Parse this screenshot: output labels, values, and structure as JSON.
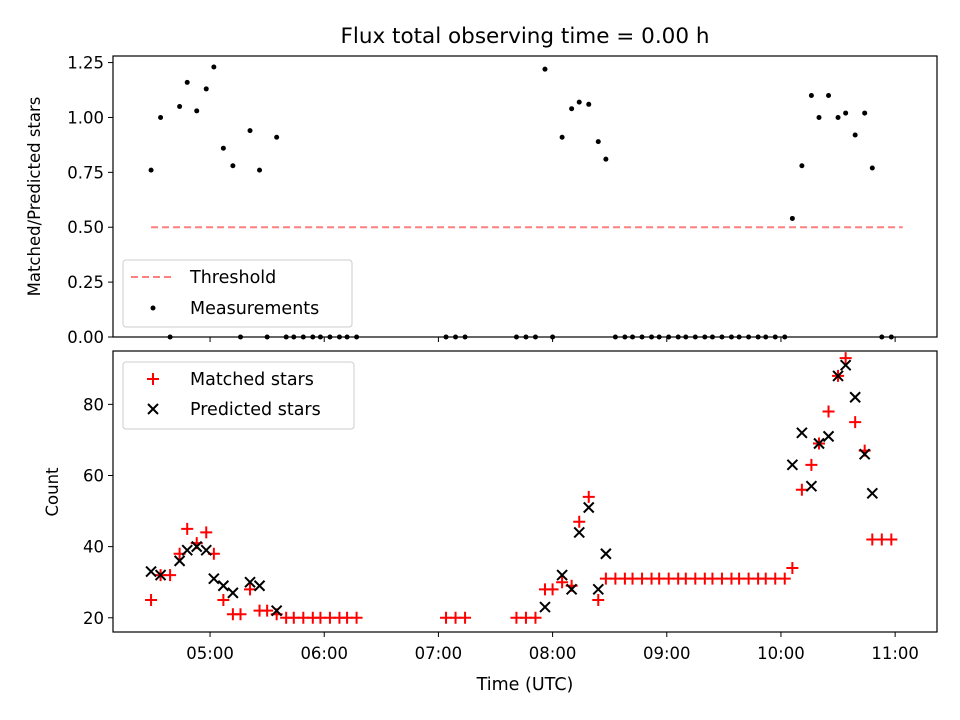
{
  "chart_data": [
    {
      "type": "scatter",
      "title": "Flux total observing time = 0.00 h",
      "xlabel": "",
      "ylabel": "Matched/Predicted stars",
      "xlim": [
        "04:09",
        "11:22"
      ],
      "ylim": [
        0,
        1.28
      ],
      "yticks": [
        "0.00",
        "0.25",
        "0.50",
        "0.75",
        "1.00",
        "1.25"
      ],
      "grid": false,
      "legend": {
        "placement": "lower-left",
        "entries": [
          "Threshold",
          "Measurements"
        ]
      },
      "threshold": {
        "name": "Threshold",
        "y": 0.5,
        "x_range": [
          "04:29",
          "11:04"
        ],
        "color": "#ff7f7f",
        "style": "dashed"
      },
      "series": [
        {
          "name": "Measurements",
          "color": "#000000",
          "marker": "dot",
          "points": [
            [
              "04:29",
              0.76
            ],
            [
              "04:34",
              1.0
            ],
            [
              "04:39",
              0.0
            ],
            [
              "04:44",
              1.05
            ],
            [
              "04:48",
              1.16
            ],
            [
              "04:53",
              1.03
            ],
            [
              "04:58",
              1.13
            ],
            [
              "05:02",
              1.23
            ],
            [
              "05:07",
              0.86
            ],
            [
              "05:12",
              0.78
            ],
            [
              "05:16",
              0.0
            ],
            [
              "05:21",
              0.94
            ],
            [
              "05:26",
              0.76
            ],
            [
              "05:30",
              0.0
            ],
            [
              "05:35",
              0.91
            ],
            [
              "05:40",
              0.0
            ],
            [
              "05:44",
              0.0
            ],
            [
              "05:49",
              0.0
            ],
            [
              "05:54",
              0.0
            ],
            [
              "05:58",
              0.0
            ],
            [
              "06:03",
              0.0
            ],
            [
              "06:08",
              0.0
            ],
            [
              "06:12",
              0.0
            ],
            [
              "06:17",
              0.0
            ],
            [
              "07:04",
              0.0
            ],
            [
              "07:09",
              0.0
            ],
            [
              "07:14",
              0.0
            ],
            [
              "07:41",
              0.0
            ],
            [
              "07:46",
              0.0
            ],
            [
              "07:51",
              0.0
            ],
            [
              "07:56",
              1.22
            ],
            [
              "08:00",
              0.0
            ],
            [
              "08:05",
              0.91
            ],
            [
              "08:10",
              1.04
            ],
            [
              "08:14",
              1.07
            ],
            [
              "08:19",
              1.06
            ],
            [
              "08:24",
              0.89
            ],
            [
              "08:28",
              0.81
            ],
            [
              "08:33",
              0.0
            ],
            [
              "08:38",
              0.0
            ],
            [
              "08:42",
              0.0
            ],
            [
              "08:47",
              0.0
            ],
            [
              "08:52",
              0.0
            ],
            [
              "08:56",
              0.0
            ],
            [
              "09:01",
              0.0
            ],
            [
              "09:06",
              0.0
            ],
            [
              "09:10",
              0.0
            ],
            [
              "09:15",
              0.0
            ],
            [
              "09:20",
              0.0
            ],
            [
              "09:24",
              0.0
            ],
            [
              "09:29",
              0.0
            ],
            [
              "09:34",
              0.0
            ],
            [
              "09:38",
              0.0
            ],
            [
              "09:43",
              0.0
            ],
            [
              "09:48",
              0.0
            ],
            [
              "09:52",
              0.0
            ],
            [
              "09:57",
              0.0
            ],
            [
              "10:02",
              0.0
            ],
            [
              "10:06",
              0.54
            ],
            [
              "10:11",
              0.78
            ],
            [
              "10:16",
              1.1
            ],
            [
              "10:20",
              1.0
            ],
            [
              "10:25",
              1.1
            ],
            [
              "10:30",
              1.0
            ],
            [
              "10:34",
              1.02
            ],
            [
              "10:39",
              0.92
            ],
            [
              "10:44",
              1.02
            ],
            [
              "10:48",
              0.77
            ],
            [
              "10:53",
              0.0
            ],
            [
              "10:58",
              0.0
            ]
          ]
        }
      ]
    },
    {
      "type": "scatter",
      "title": "",
      "xlabel": "Time (UTC)",
      "ylabel": "Count",
      "xlim": [
        "04:09",
        "11:22"
      ],
      "ylim": [
        16,
        95
      ],
      "xticks": [
        "05:00",
        "06:00",
        "07:00",
        "08:00",
        "09:00",
        "10:00",
        "11:00"
      ],
      "yticks": [
        "20",
        "40",
        "60",
        "80"
      ],
      "grid": false,
      "legend": {
        "placement": "top-left",
        "entries": [
          "Matched stars",
          "Predicted stars"
        ]
      },
      "series": [
        {
          "name": "Matched stars",
          "color": "#ff0000",
          "marker": "plus",
          "points": [
            [
              "04:29",
              25
            ],
            [
              "04:34",
              32
            ],
            [
              "04:39",
              32
            ],
            [
              "04:44",
              38
            ],
            [
              "04:48",
              45
            ],
            [
              "04:53",
              41
            ],
            [
              "04:58",
              44
            ],
            [
              "05:02",
              38
            ],
            [
              "05:07",
              25
            ],
            [
              "05:12",
              21
            ],
            [
              "05:16",
              21
            ],
            [
              "05:21",
              28
            ],
            [
              "05:26",
              22
            ],
            [
              "05:30",
              22
            ],
            [
              "05:35",
              21
            ],
            [
              "05:40",
              20
            ],
            [
              "05:44",
              20
            ],
            [
              "05:49",
              20
            ],
            [
              "05:54",
              20
            ],
            [
              "05:58",
              20
            ],
            [
              "06:03",
              20
            ],
            [
              "06:08",
              20
            ],
            [
              "06:12",
              20
            ],
            [
              "06:17",
              20
            ],
            [
              "07:04",
              20
            ],
            [
              "07:09",
              20
            ],
            [
              "07:14",
              20
            ],
            [
              "07:41",
              20
            ],
            [
              "07:46",
              20
            ],
            [
              "07:51",
              20
            ],
            [
              "07:56",
              28
            ],
            [
              "08:00",
              28
            ],
            [
              "08:05",
              30
            ],
            [
              "08:10",
              29
            ],
            [
              "08:14",
              47
            ],
            [
              "08:19",
              54
            ],
            [
              "08:24",
              25
            ],
            [
              "08:28",
              31
            ],
            [
              "08:33",
              31
            ],
            [
              "08:38",
              31
            ],
            [
              "08:42",
              31
            ],
            [
              "08:47",
              31
            ],
            [
              "08:52",
              31
            ],
            [
              "08:56",
              31
            ],
            [
              "09:01",
              31
            ],
            [
              "09:06",
              31
            ],
            [
              "09:10",
              31
            ],
            [
              "09:15",
              31
            ],
            [
              "09:20",
              31
            ],
            [
              "09:24",
              31
            ],
            [
              "09:29",
              31
            ],
            [
              "09:34",
              31
            ],
            [
              "09:38",
              31
            ],
            [
              "09:43",
              31
            ],
            [
              "09:48",
              31
            ],
            [
              "09:52",
              31
            ],
            [
              "09:57",
              31
            ],
            [
              "10:02",
              31
            ],
            [
              "10:06",
              34
            ],
            [
              "10:11",
              56
            ],
            [
              "10:16",
              63
            ],
            [
              "10:20",
              69
            ],
            [
              "10:25",
              78
            ],
            [
              "10:30",
              88
            ],
            [
              "10:34",
              93
            ],
            [
              "10:39",
              75
            ],
            [
              "10:44",
              67
            ],
            [
              "10:48",
              42
            ],
            [
              "10:53",
              42
            ],
            [
              "10:58",
              42
            ]
          ]
        },
        {
          "name": "Predicted stars",
          "color": "#000000",
          "marker": "x",
          "points": [
            [
              "04:29",
              33
            ],
            [
              "04:34",
              32
            ],
            [
              "04:44",
              36
            ],
            [
              "04:48",
              39
            ],
            [
              "04:53",
              40
            ],
            [
              "04:58",
              39
            ],
            [
              "05:02",
              31
            ],
            [
              "05:07",
              29
            ],
            [
              "05:12",
              27
            ],
            [
              "05:21",
              30
            ],
            [
              "05:26",
              29
            ],
            [
              "05:35",
              22
            ],
            [
              "07:56",
              23
            ],
            [
              "08:05",
              32
            ],
            [
              "08:10",
              28
            ],
            [
              "08:14",
              44
            ],
            [
              "08:19",
              51
            ],
            [
              "08:24",
              28
            ],
            [
              "08:28",
              38
            ],
            [
              "10:06",
              63
            ],
            [
              "10:11",
              72
            ],
            [
              "10:16",
              57
            ],
            [
              "10:20",
              69
            ],
            [
              "10:25",
              71
            ],
            [
              "10:30",
              88
            ],
            [
              "10:34",
              91
            ],
            [
              "10:39",
              82
            ],
            [
              "10:44",
              66
            ],
            [
              "10:48",
              55
            ]
          ]
        }
      ]
    }
  ]
}
